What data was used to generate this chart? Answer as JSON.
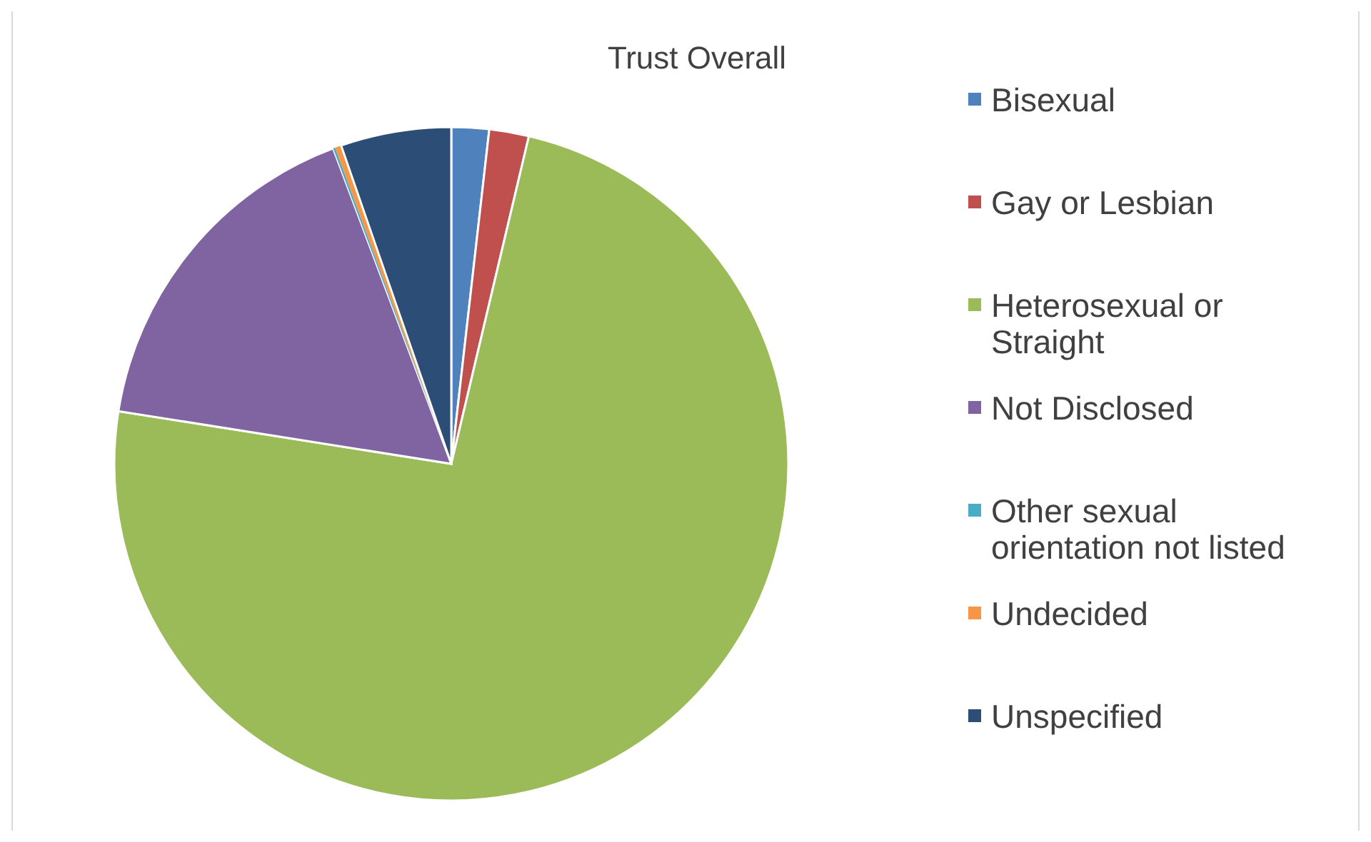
{
  "chart_data": {
    "type": "pie",
    "title": "Trust Overall",
    "categories": [
      "Bisexual",
      "Gay or Lesbian",
      "Heterosexual or Straight",
      "Not Disclosed",
      "Other sexual orientation not listed",
      "Undecided",
      "Unspecified"
    ],
    "values": [
      1.8,
      1.9,
      73.8,
      16.8,
      0.1,
      0.3,
      5.3
    ],
    "colors": [
      "#4f81bd",
      "#c0504d",
      "#9bbb59",
      "#8064a2",
      "#4bacc6",
      "#f79646",
      "#2c4d75"
    ],
    "legend": "right"
  }
}
